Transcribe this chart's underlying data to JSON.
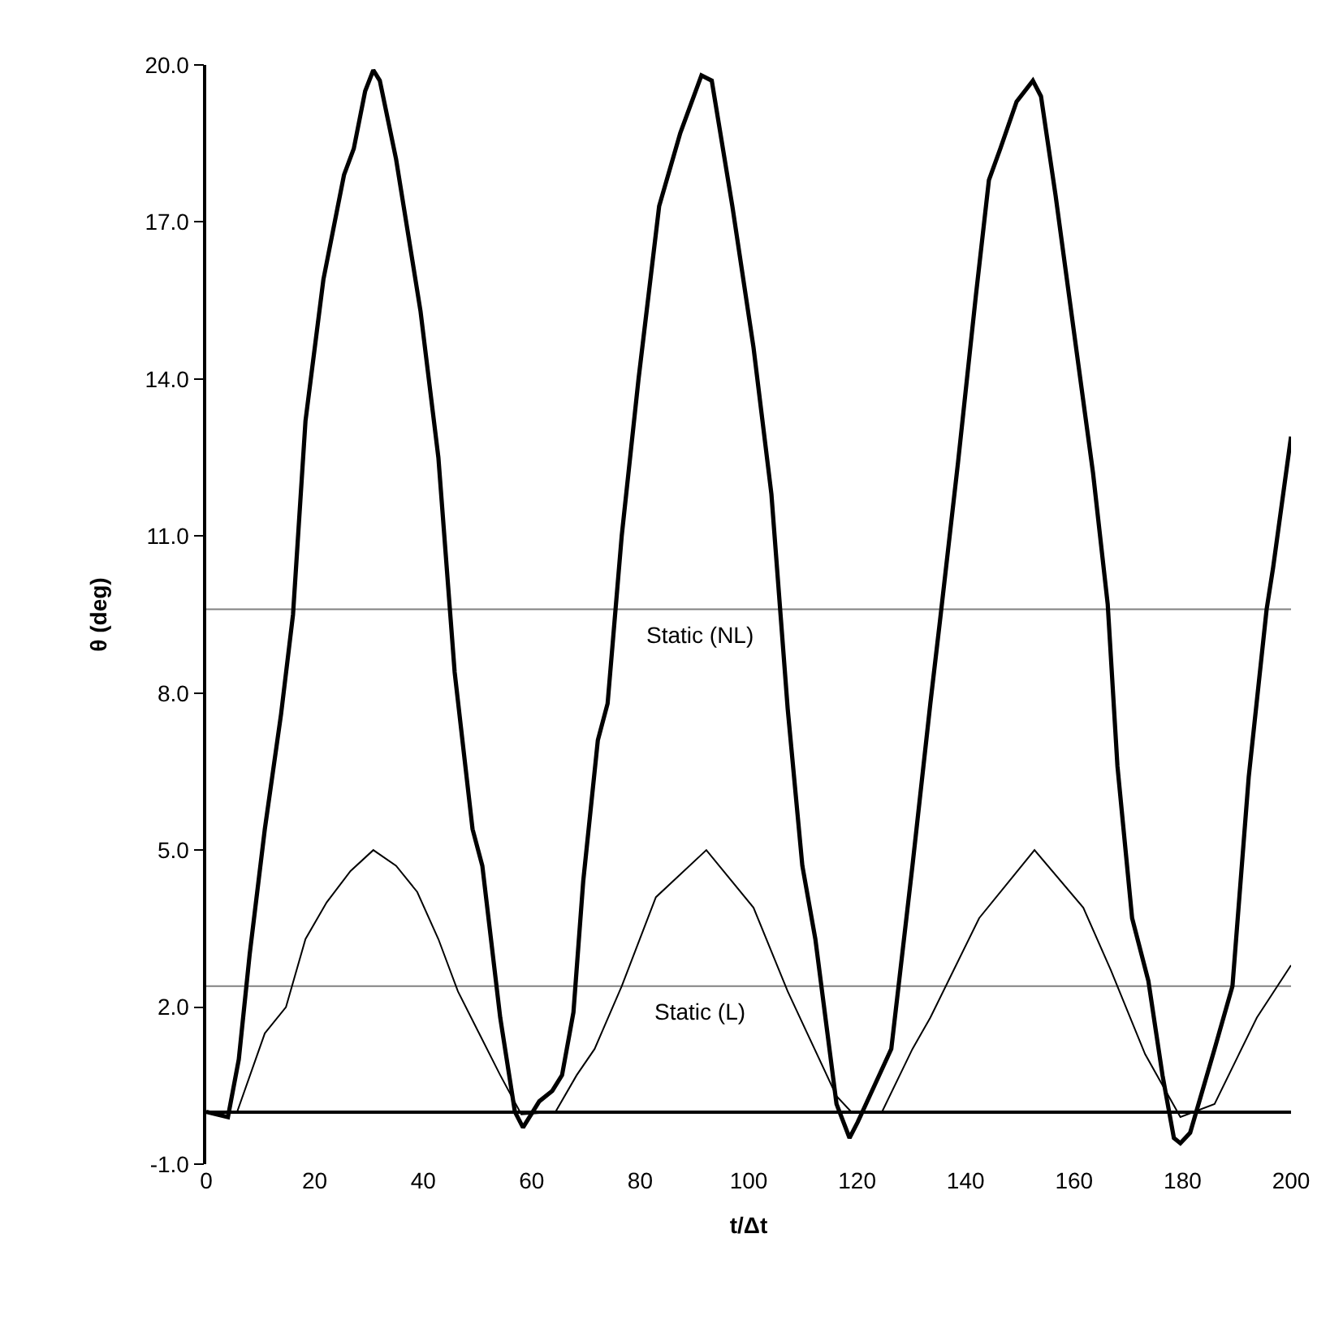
{
  "chart_data": {
    "type": "line",
    "xlabel": "t/Δt",
    "ylabel": "θ (deg)",
    "xlim": [
      0,
      200
    ],
    "xticks": [
      0,
      20,
      40,
      60,
      80,
      100,
      120,
      140,
      160,
      180,
      200
    ],
    "ylim": [
      -1,
      20
    ],
    "yticks": [
      {
        "value": -1,
        "label": "-1.0"
      },
      {
        "value": 2,
        "label": "2.0"
      },
      {
        "value": 5,
        "label": "5.0"
      },
      {
        "value": 8,
        "label": "8.0"
      },
      {
        "value": 11,
        "label": "11.0"
      },
      {
        "value": 14,
        "label": "14.0"
      },
      {
        "value": 17,
        "label": "17.0"
      },
      {
        "value": 20,
        "label": "20.0"
      }
    ],
    "grid": false,
    "marker": "none",
    "line_style": "solid",
    "series": [
      {
        "color": "#000000",
        "x": [
          0,
          4,
          6,
          8,
          10.8,
          13.8,
          16,
          18.3,
          21.6,
          25.4,
          27.2,
          29.3,
          30.8,
          32,
          35,
          39.5,
          42.8,
          45.8,
          49.1,
          50.9,
          54.2,
          56.9,
          58.4,
          61.4,
          63.8,
          65.6,
          67.7,
          69.5,
          72.2,
          74,
          76.6,
          79.7,
          83.5,
          87.4,
          91.3,
          93.2,
          97,
          100.9,
          104.2,
          107.2,
          109.9,
          112.3,
          116.2,
          118.6,
          120.1,
          126.3,
          130.2,
          133.5,
          135.3,
          138.6,
          141.9,
          144.3,
          146.4,
          149.4,
          152.4,
          153.9,
          156.6,
          160.5,
          163.5,
          166.2,
          168,
          170.7,
          173.7,
          176.3,
          178.4,
          179.6,
          181.4,
          185.9,
          189.2,
          192.2,
          195.5,
          196.7,
          200
        ],
        "values": [
          0,
          -0.1,
          1.0,
          3.0,
          5.4,
          7.6,
          9.5,
          13.2,
          15.9,
          17.9,
          18.4,
          19.5,
          19.9,
          19.7,
          18.2,
          15.3,
          12.5,
          8.4,
          5.4,
          4.7,
          1.8,
          0,
          -0.3,
          0.2,
          0.4,
          0.7,
          1.9,
          4.4,
          7.1,
          7.8,
          11.0,
          14.0,
          17.3,
          18.7,
          19.8,
          19.7,
          17.3,
          14.6,
          11.8,
          7.7,
          4.7,
          3.3,
          0.15,
          -0.5,
          -0.2,
          1.2,
          4.7,
          7.8,
          9.4,
          12.4,
          15.6,
          17.8,
          18.4,
          19.3,
          19.7,
          19.4,
          17.5,
          14.5,
          12.2,
          9.7,
          6.6,
          3.7,
          2.5,
          0.7,
          -0.5,
          -0.6,
          -0.4,
          1.2,
          2.4,
          6.4,
          9.6,
          10.4,
          12.9
        ]
      },
      {
        "color": "#000000",
        "x": [
          0,
          5.7,
          10.8,
          14.7,
          18.3,
          22.2,
          26.6,
          30.8,
          35,
          38.9,
          42.8,
          46.4,
          50.3,
          54.2,
          58.1,
          64.4,
          68.3,
          71.6,
          76.6,
          82.9,
          92.2,
          100.9,
          107.2,
          116.2,
          118.9,
          124.6,
          130.2,
          133.5,
          142.5,
          152.7,
          161.7,
          166.8,
          173.1,
          179.6,
          185.9,
          193.7,
          200
        ],
        "values": [
          0,
          0,
          1.5,
          2.0,
          3.3,
          4.0,
          4.6,
          5.0,
          4.7,
          4.2,
          3.3,
          2.3,
          1.5,
          0.7,
          -0.05,
          0,
          0.7,
          1.2,
          2.4,
          4.1,
          5.0,
          3.9,
          2.3,
          0.3,
          0,
          0,
          1.2,
          1.8,
          3.7,
          5.0,
          3.9,
          2.7,
          1.1,
          -0.1,
          0.15,
          1.8,
          2.8
        ]
      }
    ],
    "ref_lines": [
      {
        "axis": "y",
        "value": 9.6,
        "label": "Static (NL)",
        "color": "#808080"
      },
      {
        "axis": "y",
        "value": 2.4,
        "label": "Static (L)",
        "color": "#808080"
      }
    ]
  }
}
